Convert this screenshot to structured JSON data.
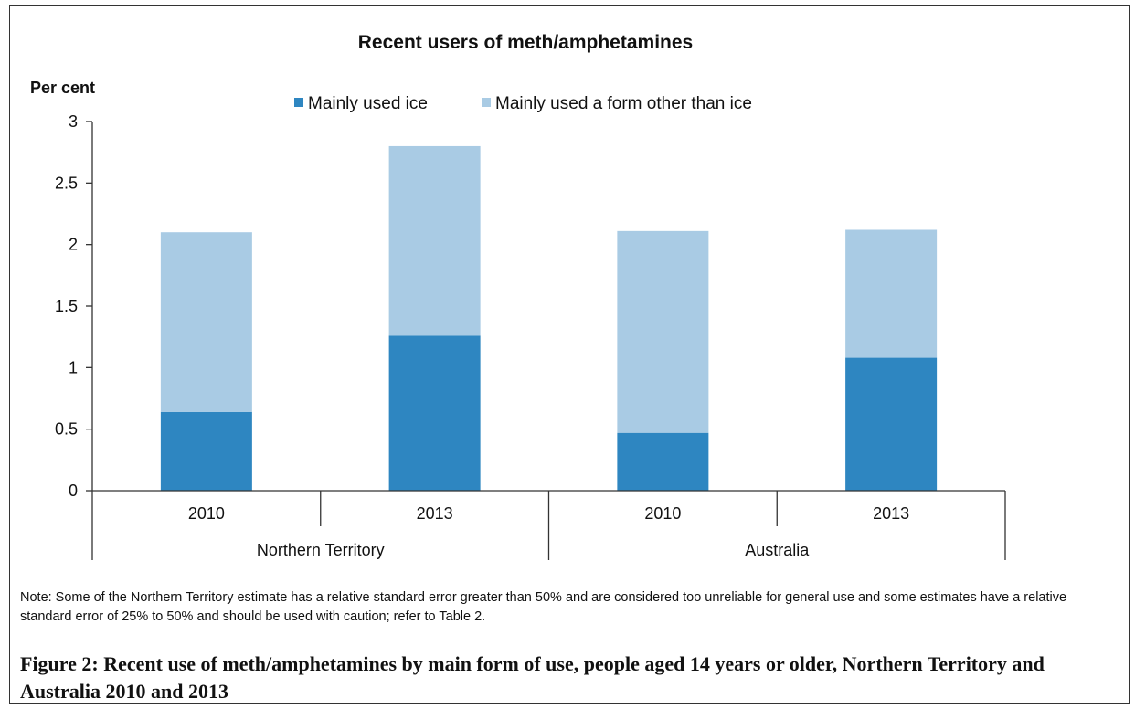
{
  "chart_data": {
    "type": "bar",
    "stacked": true,
    "title": "Recent users of meth/amphetamines",
    "ylabel": "Per cent",
    "ylim": [
      0,
      3
    ],
    "yticks": [
      "0",
      "0.5",
      "1",
      "1.5",
      "2",
      "2.5",
      "3"
    ],
    "ytick_values": [
      0,
      0.5,
      1,
      1.5,
      2,
      2.5,
      3
    ],
    "categories": [
      "2010",
      "2013",
      "2010",
      "2013"
    ],
    "groups": [
      {
        "label": "Northern Territory",
        "span": 2
      },
      {
        "label": "Australia",
        "span": 2
      }
    ],
    "series": [
      {
        "name": "Mainly used ice",
        "color": "#2e86c1",
        "values": [
          0.64,
          1.26,
          0.47,
          1.08
        ]
      },
      {
        "name": "Mainly used a form other than ice",
        "color": "#a9cbe4",
        "values": [
          1.46,
          1.54,
          1.64,
          1.04
        ]
      }
    ],
    "legend": "top-center",
    "grid": false
  },
  "note": "Note: Some of the Northern Territory estimate has a relative standard error greater than 50% and are considered too unreliable for general use and some estimates have a relative standard error of 25% to 50% and should be used with caution; refer to Table 2.",
  "caption": "Figure 2: Recent use of meth/amphetamines by main form of use, people aged 14 years or older, Northern Territory and Australia 2010 and 2013"
}
